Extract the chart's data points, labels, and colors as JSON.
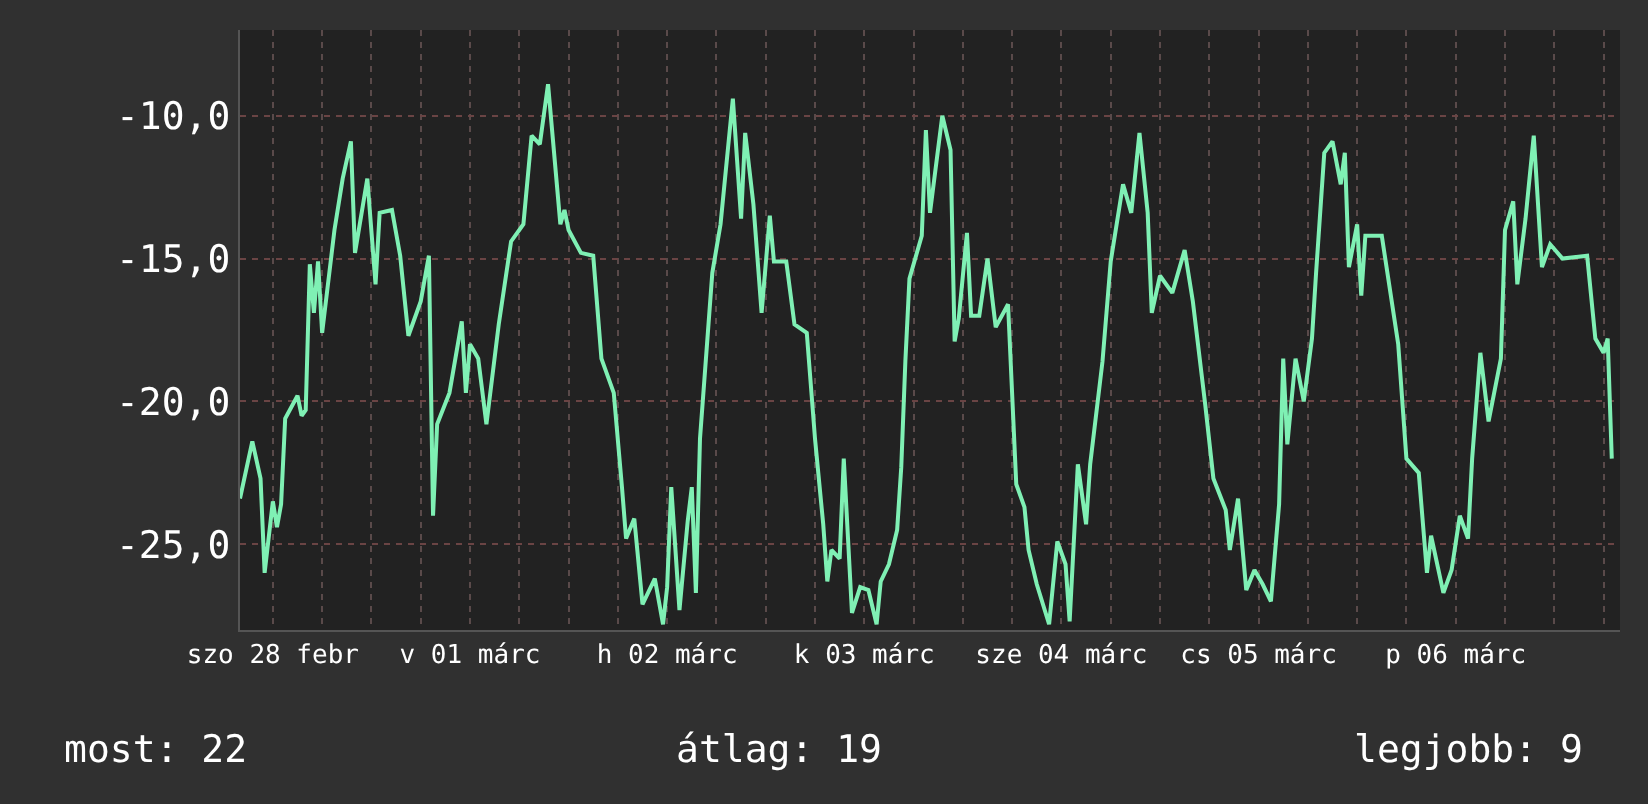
{
  "chart_data": {
    "type": "line",
    "x": [
      "--02-28T08:00",
      "--02-28T09:30",
      "--02-28T10:30",
      "--02-28T11:00",
      "--02-28T12:00",
      "--02-28T12:30",
      "--02-28T13:00",
      "--02-28T13:30",
      "--02-28T15:00",
      "--02-28T15:30",
      "--02-28T16:00",
      "--02-28T16:30",
      "--02-28T17:00",
      "--02-28T17:30",
      "--02-28T18:00",
      "--02-28T19:30",
      "--02-28T20:30",
      "--02-28T21:30",
      "--02-28T22:00",
      "--02-28T23:30",
      "--03-01T00:30",
      "--03-01T01:00",
      "--03-01T02:30",
      "--03-01T03:30",
      "--03-01T04:30",
      "--03-01T06:00",
      "--03-01T07:00",
      "--03-01T07:30",
      "--03-01T08:00",
      "--03-01T09:30",
      "--03-01T11:00",
      "--03-01T11:30",
      "--03-01T12:00",
      "--03-01T13:00",
      "--03-01T14:00",
      "--03-01T15:30",
      "--03-01T17:00",
      "--03-01T18:30",
      "--03-01T19:30",
      "--03-01T20:30",
      "--03-01T21:30",
      "--03-01T23:00",
      "--03-01T23:30",
      "--03-02T00:00",
      "--03-02T01:30",
      "--03-02T03:00",
      "--03-02T04:00",
      "--03-02T05:30",
      "--03-02T06:30",
      "--03-02T07:00",
      "--03-02T08:00",
      "--03-02T09:00",
      "--03-02T10:30",
      "--03-02T11:30",
      "--03-02T12:00",
      "--03-02T12:30",
      "--03-02T13:30",
      "--03-02T14:30",
      "--03-02T15:00",
      "--03-02T15:30",
      "--03-02T16:00",
      "--03-02T17:30",
      "--03-02T18:30",
      "--03-02T20:00",
      "--03-02T21:00",
      "--03-02T21:30",
      "--03-02T22:30",
      "--03-02T23:30",
      "--03-03T00:30",
      "--03-03T01:00",
      "--03-03T02:30",
      "--03-03T03:30",
      "--03-03T05:00",
      "--03-03T06:00",
      "--03-03T07:00",
      "--03-03T07:30",
      "--03-03T08:00",
      "--03-03T09:00",
      "--03-03T09:30",
      "--03-03T10:30",
      "--03-03T11:30",
      "--03-03T12:30",
      "--03-03T13:30",
      "--03-03T14:00",
      "--03-03T15:00",
      "--03-03T16:00",
      "--03-03T16:30",
      "--03-03T17:00",
      "--03-03T17:30",
      "--03-03T19:00",
      "--03-03T19:30",
      "--03-03T20:00",
      "--03-03T21:30",
      "--03-03T22:30",
      "--03-03T23:00",
      "--03-03T23:30",
      "--03-04T00:30",
      "--03-04T01:00",
      "--03-04T02:00",
      "--03-04T03:00",
      "--03-04T04:00",
      "--03-04T05:30",
      "--03-04T06:30",
      "--03-04T07:30",
      "--03-04T08:00",
      "--03-04T09:00",
      "--03-04T10:30",
      "--03-04T11:30",
      "--03-04T12:30",
      "--03-04T13:00",
      "--03-04T14:00",
      "--03-04T15:00",
      "--03-04T15:30",
      "--03-04T17:00",
      "--03-04T18:00",
      "--03-04T19:30",
      "--03-04T20:30",
      "--03-04T21:30",
      "--03-04T22:30",
      "--03-04T23:00",
      "--03-05T00:00",
      "--03-05T01:30",
      "--03-05T03:00",
      "--03-05T04:00",
      "--03-05T05:30",
      "--03-05T06:30",
      "--03-05T08:00",
      "--03-05T08:30",
      "--03-05T09:30",
      "--03-05T10:30",
      "--03-05T11:30",
      "--03-05T12:30",
      "--03-05T13:30",
      "--03-05T14:30",
      "--03-05T15:00",
      "--03-05T15:30",
      "--03-05T16:30",
      "--03-05T17:30",
      "--03-05T18:30",
      "--03-05T19:00",
      "--03-05T20:00",
      "--03-05T21:00",
      "--03-05T22:00",
      "--03-05T22:30",
      "--03-05T23:00",
      "--03-06T00:00",
      "--03-06T00:30",
      "--03-06T01:00",
      "--03-06T03:00",
      "--03-06T05:00",
      "--03-06T06:00",
      "--03-06T07:30",
      "--03-06T08:30",
      "--03-06T09:00",
      "--03-06T10:30",
      "--03-06T11:30",
      "--03-06T12:30",
      "--03-06T13:30",
      "--03-06T14:00",
      "--03-06T15:00",
      "--03-06T16:00",
      "--03-06T17:30",
      "--03-06T18:00",
      "--03-06T19:00",
      "--03-06T19:30",
      "--03-06T20:30",
      "--03-06T21:30",
      "--03-06T22:30",
      "--03-06T23:30",
      "--03-07T01:00",
      "--03-07T04:00",
      "--03-07T05:00",
      "--03-07T06:00",
      "--03-07T06:30",
      "--03-07T07:00"
    ],
    "series": [
      {
        "color": "#7ff0b4",
        "values": [
          -23.4,
          -21.4,
          -22.7,
          -26.0,
          -23.5,
          -24.4,
          -23.6,
          -20.6,
          -19.8,
          -20.5,
          -20.3,
          -15.2,
          -16.9,
          -15.1,
          -17.6,
          -14.0,
          -12.2,
          -10.9,
          -14.8,
          -12.2,
          -15.9,
          -13.4,
          -13.3,
          -14.9,
          -17.7,
          -16.5,
          -14.9,
          -24.0,
          -20.8,
          -19.7,
          -17.2,
          -19.7,
          -18.0,
          -18.5,
          -20.8,
          -17.3,
          -14.4,
          -13.8,
          -10.7,
          -11.0,
          -8.9,
          -13.8,
          -13.3,
          -14.0,
          -14.8,
          -14.9,
          -18.5,
          -19.7,
          -23.0,
          -24.8,
          -24.1,
          -27.1,
          -26.2,
          -27.8,
          -26.5,
          -23.0,
          -27.3,
          -24.2,
          -23.0,
          -26.7,
          -21.3,
          -15.5,
          -13.8,
          -9.4,
          -13.6,
          -10.6,
          -13.1,
          -16.9,
          -13.5,
          -15.1,
          -15.1,
          -17.3,
          -17.6,
          -21.3,
          -24.3,
          -26.3,
          -25.2,
          -25.5,
          -22.0,
          -27.4,
          -26.5,
          -26.6,
          -27.8,
          -26.3,
          -25.7,
          -24.5,
          -22.3,
          -18.6,
          -15.7,
          -14.2,
          -10.5,
          -13.4,
          -10.0,
          -11.2,
          -17.9,
          -17.1,
          -14.1,
          -17.0,
          -17.0,
          -15.0,
          -17.4,
          -16.6,
          -22.9,
          -23.7,
          -25.2,
          -26.4,
          -27.8,
          -24.9,
          -25.7,
          -27.7,
          -22.2,
          -24.3,
          -22.2,
          -18.6,
          -15.1,
          -12.4,
          -13.4,
          -10.6,
          -13.4,
          -16.9,
          -15.6,
          -16.2,
          -14.7,
          -16.5,
          -20.1,
          -22.7,
          -23.8,
          -25.2,
          -23.4,
          -26.6,
          -25.9,
          -26.4,
          -27.0,
          -23.6,
          -18.5,
          -21.5,
          -18.5,
          -20.0,
          -17.8,
          -15.5,
          -11.3,
          -10.9,
          -12.4,
          -11.3,
          -15.3,
          -13.8,
          -16.3,
          -14.2,
          -14.2,
          -18.0,
          -22.0,
          -22.5,
          -26.0,
          -24.7,
          -26.7,
          -25.9,
          -24.0,
          -24.8,
          -22.0,
          -18.3,
          -20.7,
          -18.5,
          -14.0,
          -13.0,
          -15.9,
          -13.6,
          -10.7,
          -15.3,
          -14.5,
          -15.0,
          -14.9,
          -17.8,
          -18.3,
          -17.8,
          -22.0
        ]
      }
    ],
    "xlim": [
      "--02-28T08:00",
      "--03-07T08:00"
    ],
    "xticks": [
      {
        "value": "--02-28T12:00",
        "label": "szo 28 febr"
      },
      {
        "value": "--02-28T18:00",
        "label": null
      },
      {
        "value": "--03-01T00:00",
        "label": null
      },
      {
        "value": "--03-01T06:00",
        "label": null
      },
      {
        "value": "--03-01T12:00",
        "label": "v 01 márc"
      },
      {
        "value": "--03-01T18:00",
        "label": null
      },
      {
        "value": "--03-02T00:00",
        "label": null
      },
      {
        "value": "--03-02T06:00",
        "label": null
      },
      {
        "value": "--03-02T12:00",
        "label": "h 02 márc"
      },
      {
        "value": "--03-02T18:00",
        "label": null
      },
      {
        "value": "--03-03T00:00",
        "label": null
      },
      {
        "value": "--03-03T06:00",
        "label": null
      },
      {
        "value": "--03-03T12:00",
        "label": "k 03 márc"
      },
      {
        "value": "--03-03T18:00",
        "label": null
      },
      {
        "value": "--03-04T00:00",
        "label": null
      },
      {
        "value": "--03-04T06:00",
        "label": null
      },
      {
        "value": "--03-04T12:00",
        "label": "sze 04 márc"
      },
      {
        "value": "--03-04T18:00",
        "label": null
      },
      {
        "value": "--03-05T00:00",
        "label": null
      },
      {
        "value": "--03-05T06:00",
        "label": null
      },
      {
        "value": "--03-05T12:00",
        "label": "cs 05 márc"
      },
      {
        "value": "--03-05T18:00",
        "label": null
      },
      {
        "value": "--03-06T00:00",
        "label": null
      },
      {
        "value": "--03-06T06:00",
        "label": null
      },
      {
        "value": "--03-06T12:00",
        "label": "p 06 márc"
      },
      {
        "value": "--03-06T18:00",
        "label": null
      },
      {
        "value": "--03-07T00:00",
        "label": null
      },
      {
        "value": "--03-07T06:00",
        "label": null
      }
    ],
    "ylim": [
      -28,
      -7
    ],
    "yticks": [
      {
        "value": -25,
        "label": "-25,0"
      },
      {
        "value": -20,
        "label": "-20,0"
      },
      {
        "value": -15,
        "label": "-15,0"
      },
      {
        "value": -10,
        "label": "-10,0"
      }
    ],
    "grid": true,
    "legend": false,
    "annotations": [
      "most: 22",
      "átlag: 19",
      "legjobb: 9"
    ]
  }
}
